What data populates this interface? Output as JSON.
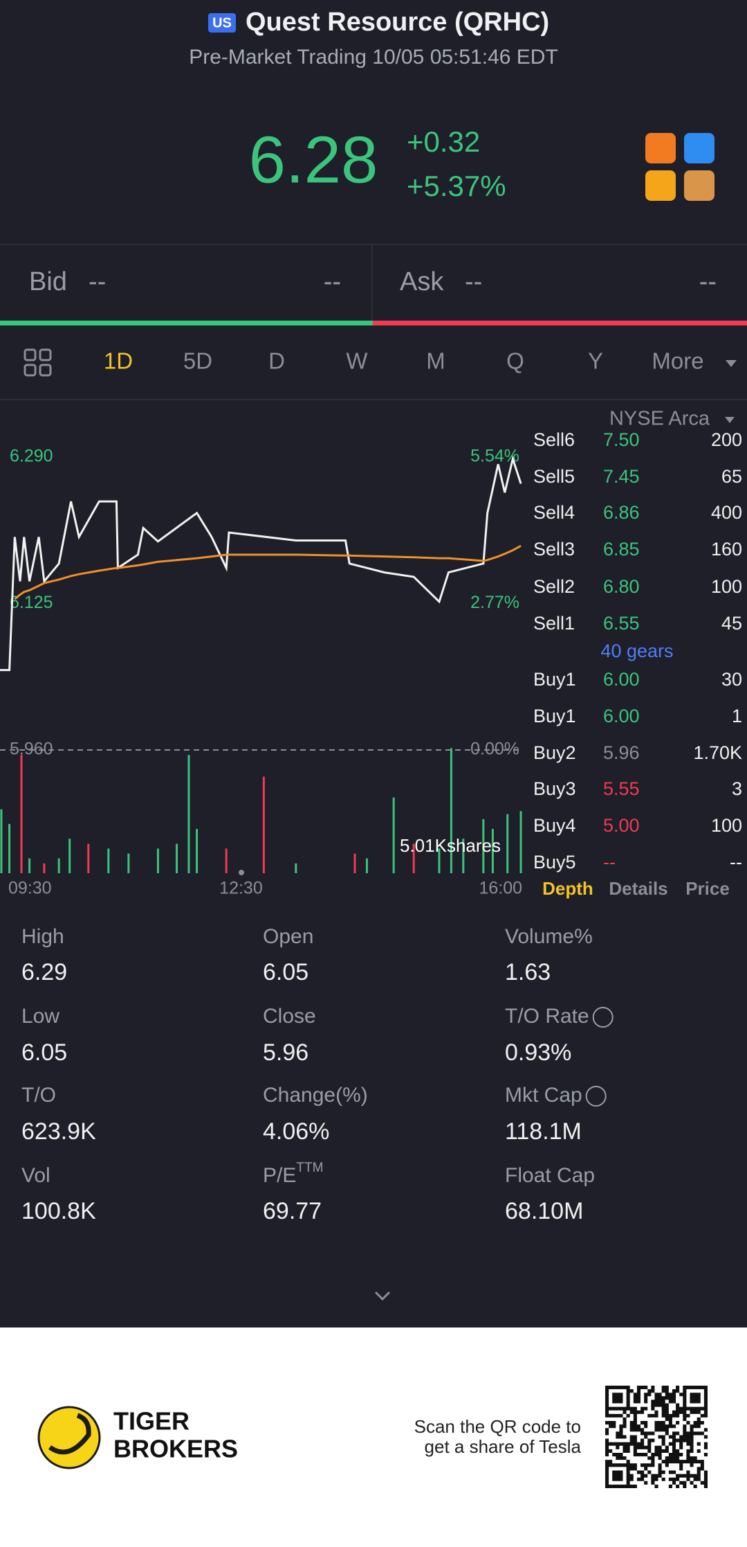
{
  "header": {
    "badge": "US",
    "title": "Quest Resource (QRHC)",
    "subtitle": "Pre-Market Trading 10/05 05:51:46 EDT"
  },
  "quote": {
    "price": "6.28",
    "change": "+0.32",
    "change_percent": "+5.37%"
  },
  "bid_ask": {
    "bid": {
      "label": "Bid",
      "price": "--",
      "size": "--"
    },
    "ask": {
      "label": "Ask",
      "price": "--",
      "size": "--"
    }
  },
  "period_tabs": [
    "1D",
    "5D",
    "D",
    "W",
    "M",
    "Q",
    "Y",
    "More"
  ],
  "exchange": "NYSE Arca",
  "chart_data": [
    {
      "type": "line",
      "x": [
        0,
        7,
        11,
        15,
        18,
        22,
        29,
        33,
        44,
        53,
        59,
        74,
        87,
        88,
        103,
        107,
        118,
        147,
        158,
        169,
        171,
        221,
        258,
        261,
        287,
        309,
        328,
        335,
        361,
        364,
        372,
        377,
        383,
        389
      ],
      "xlim": [
        0,
        390
      ],
      "xticks": [
        {
          "value": 0,
          "label": "09:30"
        },
        {
          "value": 180,
          "label": "12:30"
        },
        {
          "value": 390,
          "label": "16:00"
        }
      ],
      "ylim": [
        5.96,
        6.29
      ],
      "yticks": [
        {
          "value": 6.29,
          "label": "6.290"
        },
        {
          "value": 6.125,
          "label": "6.125"
        },
        {
          "value": 5.96,
          "label": "5.960"
        }
      ],
      "y2lim": [
        0,
        5.54
      ],
      "y2ticks": [
        {
          "value": 5.54,
          "label": "5.54%"
        },
        {
          "value": 2.77,
          "label": "2.77%"
        },
        {
          "value": 0,
          "label": "0.00%"
        }
      ],
      "series": [
        {
          "color": "#f2f2f2",
          "values": [
            6.05,
            6.05,
            6.2,
            6.15,
            6.2,
            6.15,
            6.2,
            6.15,
            6.17,
            6.24,
            6.2,
            6.24,
            6.24,
            6.165,
            6.18,
            6.21,
            6.195,
            6.227,
            6.2,
            6.165,
            6.205,
            6.196,
            6.196,
            6.17,
            6.16,
            6.155,
            6.127,
            6.16,
            6.17,
            6.227,
            6.282,
            6.25,
            6.288,
            6.26
          ]
        },
        {
          "color": "#f0902a",
          "values": [
            null,
            null,
            6.13,
            6.135,
            6.138,
            6.14,
            6.145,
            6.148,
            6.152,
            6.156,
            6.158,
            6.162,
            6.165,
            6.165,
            6.168,
            6.169,
            6.172,
            6.176,
            6.178,
            6.18,
            6.18,
            6.18,
            6.179,
            6.179,
            6.178,
            6.177,
            6.176,
            6.176,
            6.173,
            6.174,
            6.178,
            6.181,
            6.185,
            6.19
          ]
        }
      ]
    },
    {
      "type": "bar",
      "annotation": "5.01Kshares",
      "xlim": [
        0,
        390
      ],
      "ylim": [
        0,
        5010
      ],
      "x": [
        1,
        7,
        16,
        22,
        33,
        44,
        52,
        66,
        81,
        96,
        118,
        132,
        141,
        147,
        169,
        197,
        221,
        265,
        274,
        294,
        309,
        328,
        337,
        346,
        361,
        368,
        379,
        389
      ],
      "values": [
        2540,
        1960,
        4700,
        590,
        390,
        590,
        1370,
        1170,
        980,
        780,
        980,
        1170,
        4700,
        1760,
        980,
        3840,
        390,
        780,
        590,
        3010,
        1170,
        980,
        4970,
        1370,
        2150,
        1760,
        2350,
        2470
      ],
      "colors": [
        "#3bc47d",
        "#3bc47d",
        "#f23a52",
        "#3bc47d",
        "#f23a52",
        "#3bc47d",
        "#3bc47d",
        "#f23a52",
        "#3bc47d",
        "#3bc47d",
        "#3bc47d",
        "#3bc47d",
        "#3bc47d",
        "#3bc47d",
        "#f23a52",
        "#f23a52",
        "#3bc47d",
        "#f23a52",
        "#3bc47d",
        "#3bc47d",
        "#f23a52",
        "#3bc47d",
        "#3bc47d",
        "#3bc47d",
        "#3bc47d",
        "#3bc47d",
        "#3bc47d",
        "#3bc47d"
      ]
    }
  ],
  "order_book": {
    "sell": [
      {
        "side": "Sell6",
        "price": "7.50",
        "size": "200",
        "color": "#3bc47d"
      },
      {
        "side": "Sell5",
        "price": "7.45",
        "size": "65",
        "color": "#3bc47d"
      },
      {
        "side": "Sell4",
        "price": "6.86",
        "size": "400",
        "color": "#3bc47d"
      },
      {
        "side": "Sell3",
        "price": "6.85",
        "size": "160",
        "color": "#3bc47d"
      },
      {
        "side": "Sell2",
        "price": "6.80",
        "size": "100",
        "color": "#3bc47d"
      },
      {
        "side": "Sell1",
        "price": "6.55",
        "size": "45",
        "color": "#3bc47d"
      }
    ],
    "gears": "40 gears",
    "buy": [
      {
        "side": "Buy1",
        "price": "6.00",
        "size": "30",
        "color": "#3bc47d"
      },
      {
        "side": "Buy1",
        "price": "6.00",
        "size": "1",
        "color": "#3bc47d"
      },
      {
        "side": "Buy2",
        "price": "5.96",
        "size": "1.70K",
        "color": "#8b8e99"
      },
      {
        "side": "Buy3",
        "price": "5.55",
        "size": "3",
        "color": "#f23a52"
      },
      {
        "side": "Buy4",
        "price": "5.00",
        "size": "100",
        "color": "#f23a52"
      },
      {
        "side": "Buy5",
        "price": "--",
        "size": "--",
        "color": "#f23a52"
      }
    ]
  },
  "panel_tabs": [
    "Depth",
    "Details",
    "Price"
  ],
  "stats": [
    {
      "label": "High",
      "value": "6.29"
    },
    {
      "label": "Open",
      "value": "6.05"
    },
    {
      "label": "Volume%",
      "value": "1.63"
    },
    {
      "label": "Low",
      "value": "6.05"
    },
    {
      "label": "Close",
      "value": "5.96"
    },
    {
      "label": "T/O Rate",
      "value": "0.93%"
    },
    {
      "label": "T/O",
      "value": "623.9K"
    },
    {
      "label": "Change(%)",
      "value": "4.06%"
    },
    {
      "label": "Mkt Cap",
      "value": "118.1M"
    },
    {
      "label": "Vol",
      "value": "100.8K"
    },
    {
      "label": "P/E",
      "sup": "TTM",
      "value": "69.77"
    },
    {
      "label": "Float Cap",
      "value": "68.10M"
    }
  ],
  "footer": {
    "brand": [
      "TIGER",
      "BROKERS"
    ],
    "caption": [
      "Scan the QR code to",
      "get a share of Tesla"
    ]
  }
}
